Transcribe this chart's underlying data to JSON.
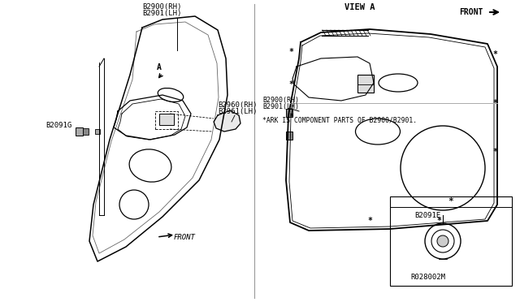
{
  "bg_color": "#ffffff",
  "line_color": "#000000",
  "labels": {
    "B2900_RH_left": "B2900(RH)",
    "B2901_LH_left": "B2901(LH)",
    "B2091G": "B2091G",
    "B2960_RH": "B2960(RH)",
    "B2961_LH": "B2961(LH)",
    "A_label": "A",
    "FRONT_left": "FRONT",
    "VIEW_A": "VIEW A",
    "FRONT_right": "FRONT",
    "B2900_RH_right": "B2900(RH)",
    "B2901_LH_right": "B2901(LH)",
    "star_note": "*ARK IS COMPONENT PARTS OF B2900/B2901.",
    "B2091E": "B2091E",
    "ref_num": "R028002M"
  }
}
